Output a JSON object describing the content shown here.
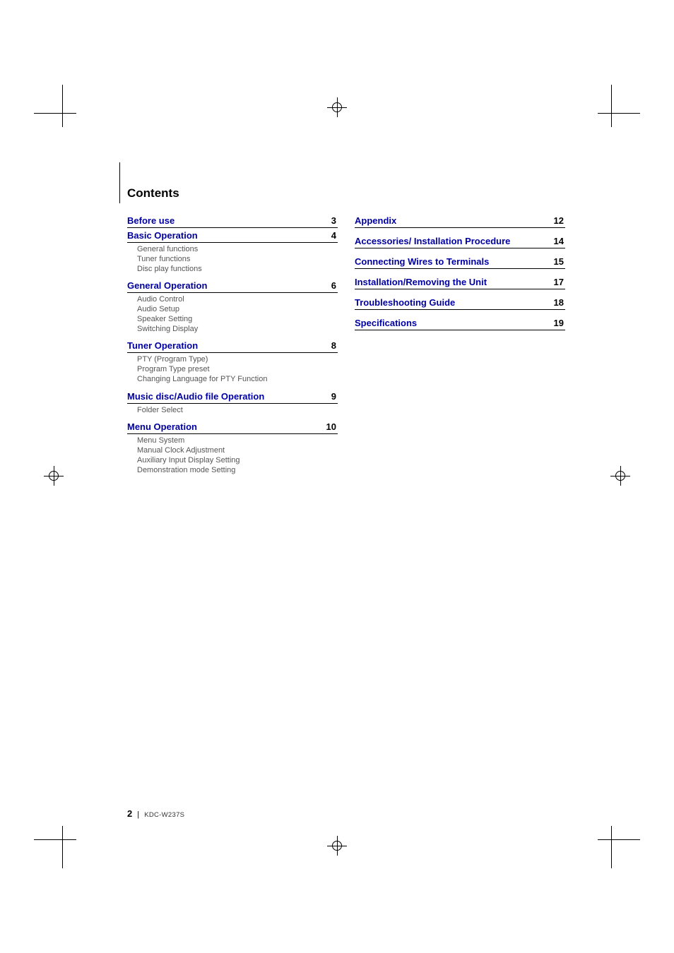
{
  "heading": "Contents",
  "link_color": "#0000a0",
  "text_color": "#000000",
  "sub_color": "#555555",
  "left": [
    {
      "title": "Before use",
      "page": "3",
      "subs": []
    },
    {
      "title": "Basic Operation",
      "page": "4",
      "subs": [
        "General functions",
        "Tuner functions",
        "Disc play functions"
      ]
    },
    {
      "title": "General Operation",
      "page": "6",
      "subs": [
        "Audio Control",
        "Audio Setup",
        "Speaker Setting",
        "Switching Display"
      ]
    },
    {
      "title": "Tuner Operation",
      "page": "8",
      "subs": [
        "PTY (Program Type)",
        "Program Type preset",
        "Changing Language for PTY Function"
      ]
    },
    {
      "title": "Music disc/Audio file Operation",
      "page": "9",
      "subs": [
        "Folder Select"
      ]
    },
    {
      "title": "Menu Operation",
      "page": "10",
      "subs": [
        "Menu System",
        "Manual Clock Adjustment",
        "Auxiliary Input Display Setting",
        "Demonstration mode Setting"
      ]
    }
  ],
  "right": [
    {
      "title": "Appendix",
      "page": "12"
    },
    {
      "title": "Accessories/ Installation Procedure",
      "page": "14"
    },
    {
      "title": "Connecting Wires to Terminals",
      "page": "15"
    },
    {
      "title": "Installation/Removing the Unit",
      "page": "17"
    },
    {
      "title": "Troubleshooting Guide",
      "page": "18"
    },
    {
      "title": "Specifications",
      "page": "19"
    }
  ],
  "footer": {
    "page_number": "2",
    "separator": "|",
    "model": "KDC-W237S"
  }
}
